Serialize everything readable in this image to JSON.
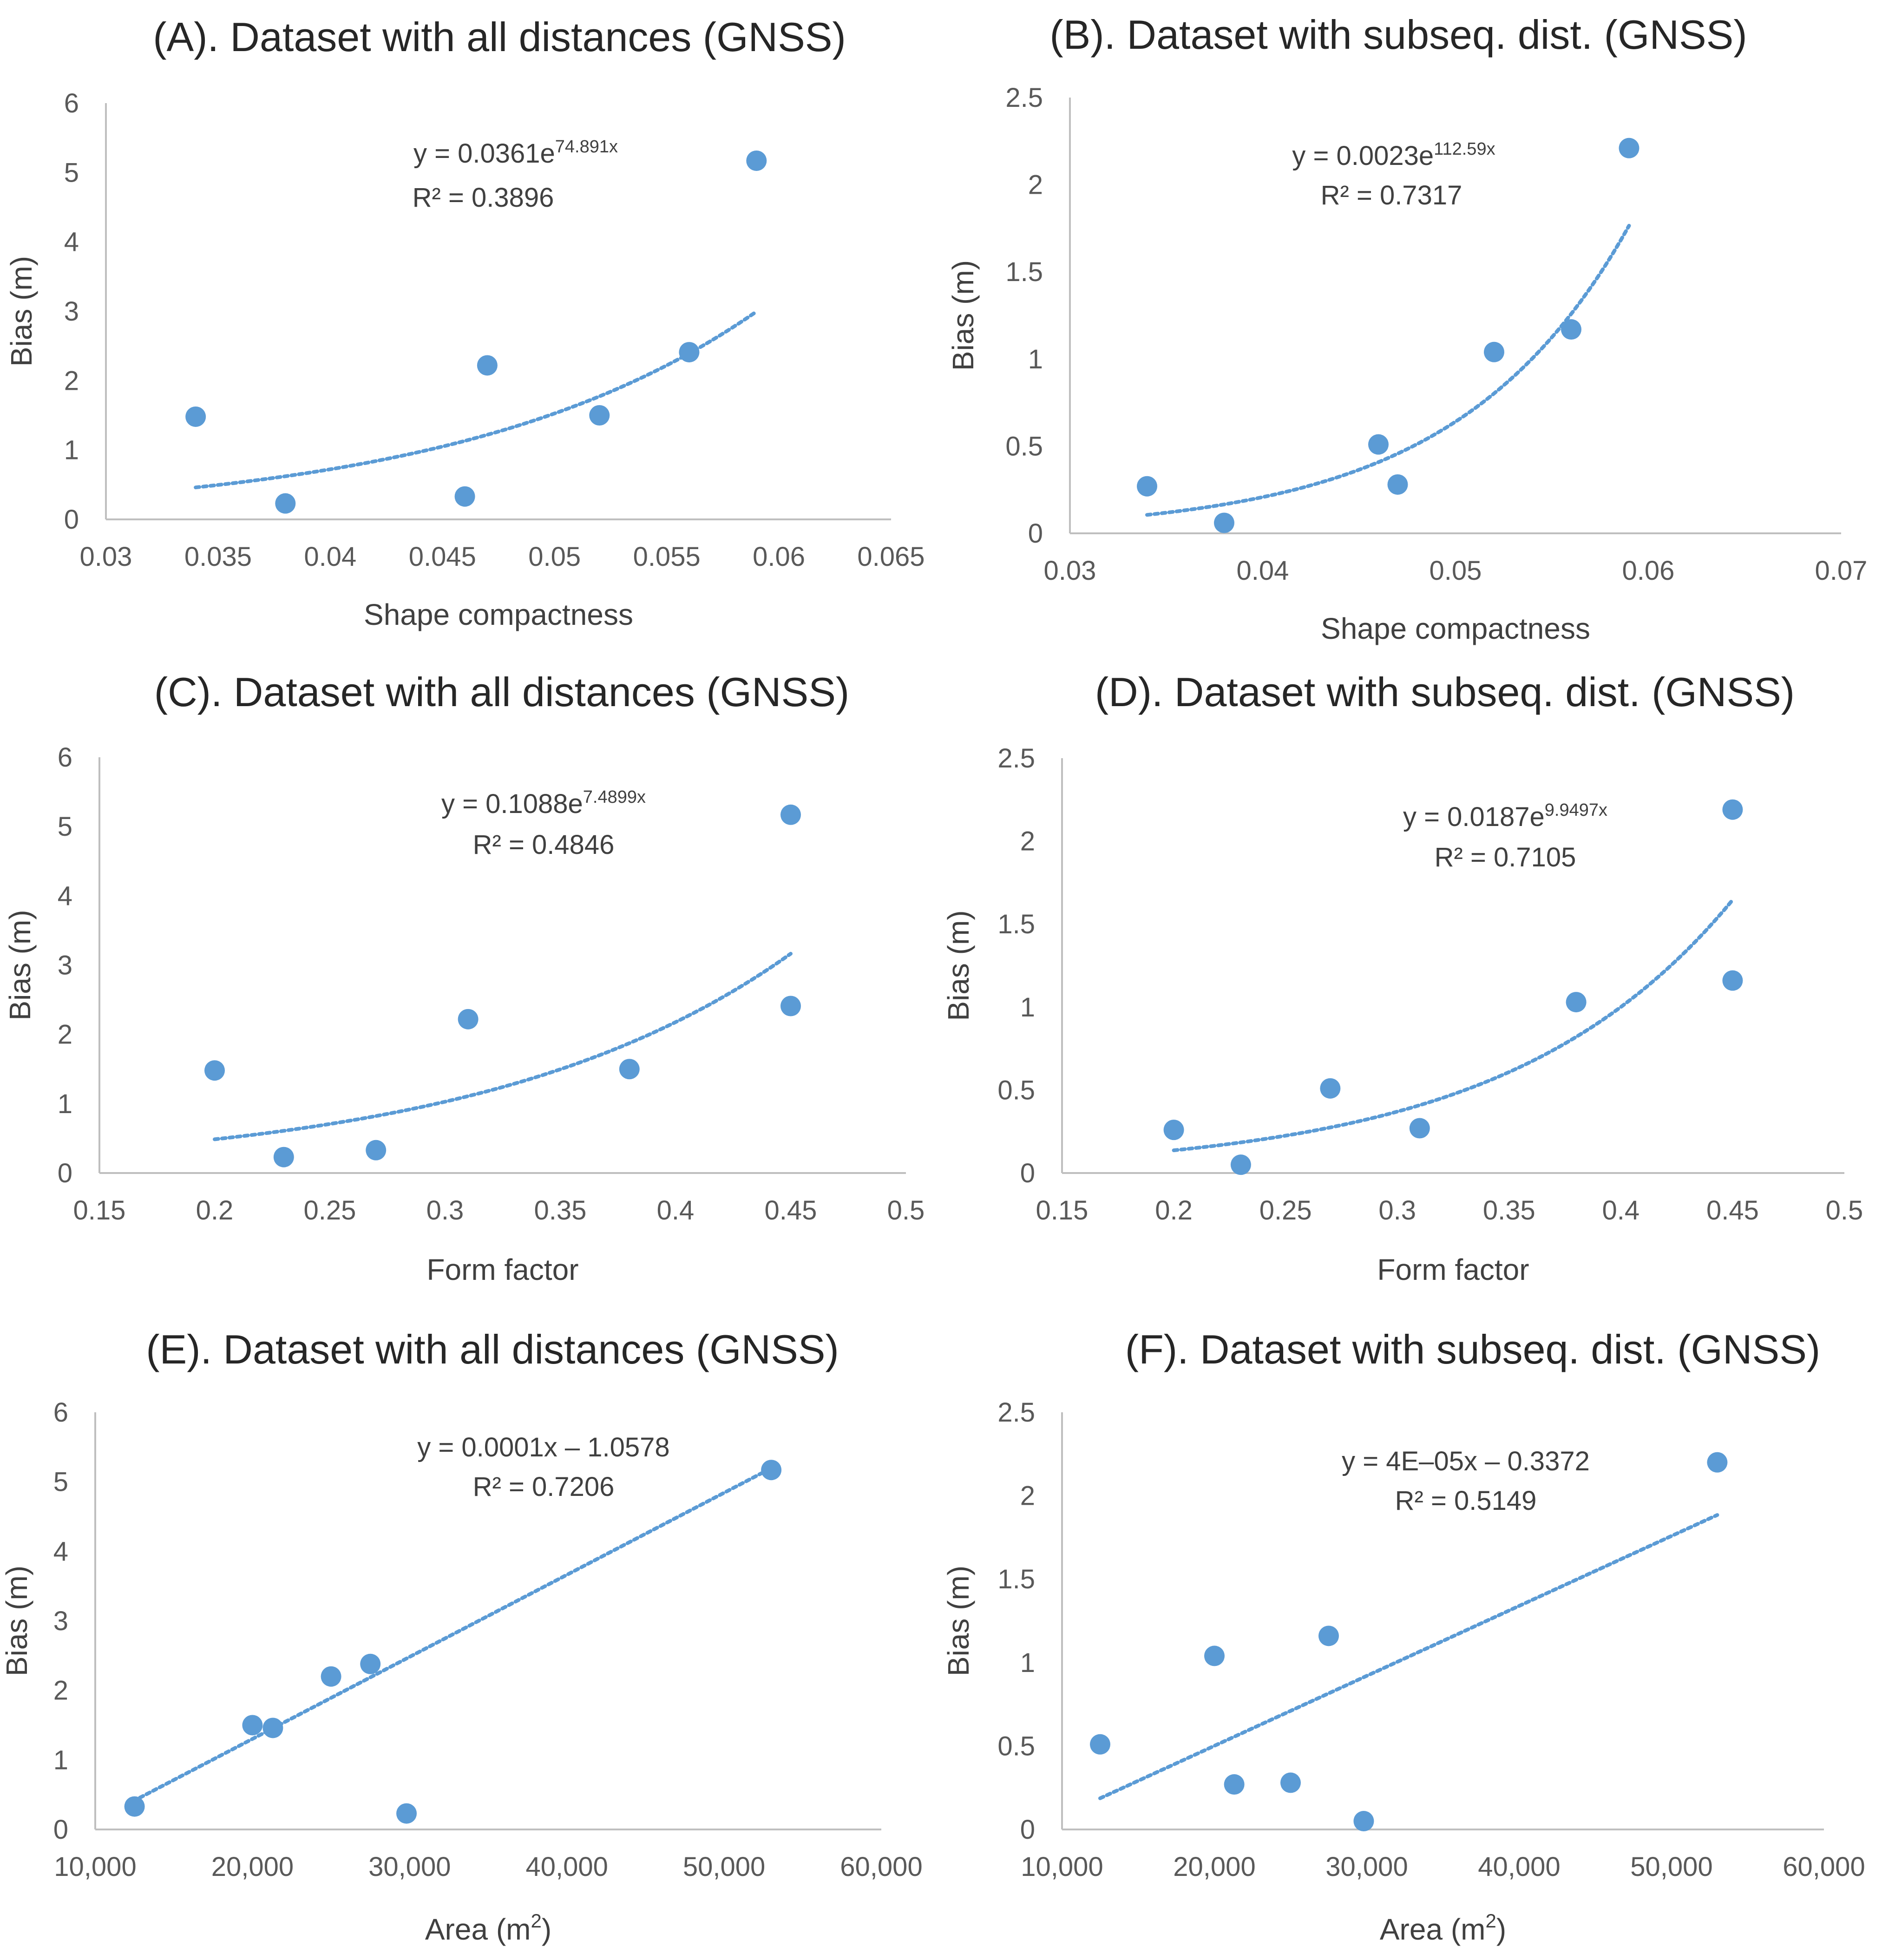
{
  "figure": {
    "colors": {
      "marker": "#5B9BD5",
      "trend": "#5B9BD5",
      "axis": "#BFBFBF",
      "text": "#404040",
      "title": "#262626"
    }
  },
  "chart_data": [
    {
      "id": "A",
      "type": "scatter",
      "title": "(A). Dataset with all distances (GNSS)",
      "xlabel": "Shape compactness",
      "ylabel": "Bias (m)",
      "xlim": [
        0.03,
        0.065
      ],
      "ylim": [
        0,
        6
      ],
      "xticks": [
        "0.03",
        "0.035",
        "0.04",
        "0.045",
        "0.05",
        "0.055",
        "0.06",
        "0.065"
      ],
      "yticks": [
        "0",
        "1",
        "2",
        "3",
        "4",
        "5",
        "6"
      ],
      "x": [
        0.034,
        0.038,
        0.046,
        0.047,
        0.052,
        0.056,
        0.059
      ],
      "y": [
        1.48,
        0.23,
        0.33,
        2.22,
        1.5,
        2.41,
        5.17
      ],
      "trendline": {
        "type": "exponential",
        "a": 0.0361,
        "b": 74.891,
        "x_range": [
          0.034,
          0.059
        ]
      },
      "equation": {
        "prefix": "y = 0.0361e",
        "exponent": "74.891x",
        "r2": "R² = 0.3896"
      }
    },
    {
      "id": "B",
      "type": "scatter",
      "title": "(B). Dataset with subseq. dist. (GNSS)",
      "xlabel": "Shape compactness",
      "ylabel": "Bias (m)",
      "xlim": [
        0.03,
        0.07
      ],
      "ylim": [
        0,
        2.5
      ],
      "xticks": [
        "0.03",
        "0.04",
        "0.05",
        "0.06",
        "0.07"
      ],
      "yticks": [
        "0",
        "0.5",
        "1",
        "1.5",
        "2",
        "2.5"
      ],
      "x": [
        0.034,
        0.038,
        0.046,
        0.047,
        0.052,
        0.056,
        0.059
      ],
      "y": [
        0.27,
        0.06,
        0.51,
        0.28,
        1.04,
        1.17,
        2.21
      ],
      "trendline": {
        "type": "exponential",
        "a": 0.0023,
        "b": 112.59,
        "x_range": [
          0.034,
          0.059
        ]
      },
      "equation": {
        "prefix": "y = 0.0023e",
        "exponent": "112.59x",
        "r2": "R² = 0.7317"
      }
    },
    {
      "id": "C",
      "type": "scatter",
      "title": "(C). Dataset with all distances (GNSS)",
      "xlabel": "Form factor",
      "ylabel": "Bias (m)",
      "xlim": [
        0.15,
        0.5
      ],
      "ylim": [
        0,
        6
      ],
      "xticks": [
        "0.15",
        "0.2",
        "0.25",
        "0.3",
        "0.35",
        "0.4",
        "0.45",
        "0.5"
      ],
      "yticks": [
        "0",
        "1",
        "2",
        "3",
        "4",
        "5",
        "6"
      ],
      "x": [
        0.2,
        0.23,
        0.27,
        0.31,
        0.38,
        0.45,
        0.45
      ],
      "y": [
        1.48,
        0.23,
        0.33,
        2.22,
        1.5,
        2.41,
        5.17
      ],
      "trendline": {
        "type": "exponential",
        "a": 0.1088,
        "b": 7.4899,
        "x_range": [
          0.2,
          0.45
        ]
      },
      "equation": {
        "prefix": "y = 0.1088e",
        "exponent": "7.4899x",
        "r2": "R² = 0.4846"
      }
    },
    {
      "id": "D",
      "type": "scatter",
      "title": "(D). Dataset with subseq. dist. (GNSS)",
      "xlabel": "Form factor",
      "ylabel": "Bias (m)",
      "xlim": [
        0.15,
        0.5
      ],
      "ylim": [
        0,
        2.5
      ],
      "xticks": [
        "0.15",
        "0.2",
        "0.25",
        "0.3",
        "0.35",
        "0.4",
        "0.45",
        "0.5"
      ],
      "yticks": [
        "0",
        "0.5",
        "1",
        "1.5",
        "2",
        "2.5"
      ],
      "x": [
        0.2,
        0.23,
        0.27,
        0.31,
        0.38,
        0.45,
        0.45
      ],
      "y": [
        0.26,
        0.05,
        0.51,
        0.27,
        1.03,
        1.16,
        2.19
      ],
      "trendline": {
        "type": "exponential",
        "a": 0.0187,
        "b": 9.9497,
        "x_range": [
          0.2,
          0.45
        ]
      },
      "equation": {
        "prefix": "y = 0.0187e",
        "exponent": "9.9497x",
        "r2": "R² = 0.7105"
      }
    },
    {
      "id": "E",
      "type": "scatter",
      "title": "(E). Dataset with all distances (GNSS)",
      "xlabel_prefix": "Area (m",
      "xlabel_sup": "2",
      "xlabel_suffix": ")",
      "ylabel": "Bias (m)",
      "xlim": [
        10000,
        60000
      ],
      "ylim": [
        0,
        6
      ],
      "xticks": [
        "10,000",
        "20,000",
        "30,000",
        "40,000",
        "50,000",
        "60,000"
      ],
      "yticks": [
        "0",
        "1",
        "2",
        "3",
        "4",
        "5",
        "6"
      ],
      "x": [
        12500,
        20000,
        21300,
        25000,
        27500,
        29800,
        53000
      ],
      "y": [
        0.33,
        1.5,
        1.46,
        2.2,
        2.38,
        0.23,
        5.17
      ],
      "trendline": {
        "type": "linear",
        "slope": 0.000118,
        "intercept": -1.0578,
        "x_range": [
          12000,
          52600
        ]
      },
      "equation": {
        "text": "y = 0.0001x – 1.0578",
        "r2": "R² = 0.7206"
      }
    },
    {
      "id": "F",
      "type": "scatter",
      "title": "(F). Dataset with subseq. dist. (GNSS)",
      "xlabel_prefix": "Area (m",
      "xlabel_sup": "2",
      "xlabel_suffix": ")",
      "ylabel": "Bias (m)",
      "xlim": [
        10000,
        60000
      ],
      "ylim": [
        0,
        2.5
      ],
      "xticks": [
        "10,000",
        "20,000",
        "30,000",
        "40,000",
        "50,000",
        "60,000"
      ],
      "yticks": [
        "0",
        "0.5",
        "1",
        "1.5",
        "2",
        "2.5"
      ],
      "x": [
        12500,
        20000,
        21300,
        25000,
        27500,
        29800,
        53000
      ],
      "y": [
        0.51,
        1.04,
        0.27,
        0.28,
        1.16,
        0.05,
        2.2
      ],
      "trendline": {
        "type": "linear",
        "slope": 4.192e-05,
        "intercept": -0.3372,
        "x_range": [
          12500,
          53000
        ]
      },
      "equation": {
        "text": "y = 4E–05x – 0.3372",
        "r2": "R² = 0.5149"
      }
    }
  ]
}
